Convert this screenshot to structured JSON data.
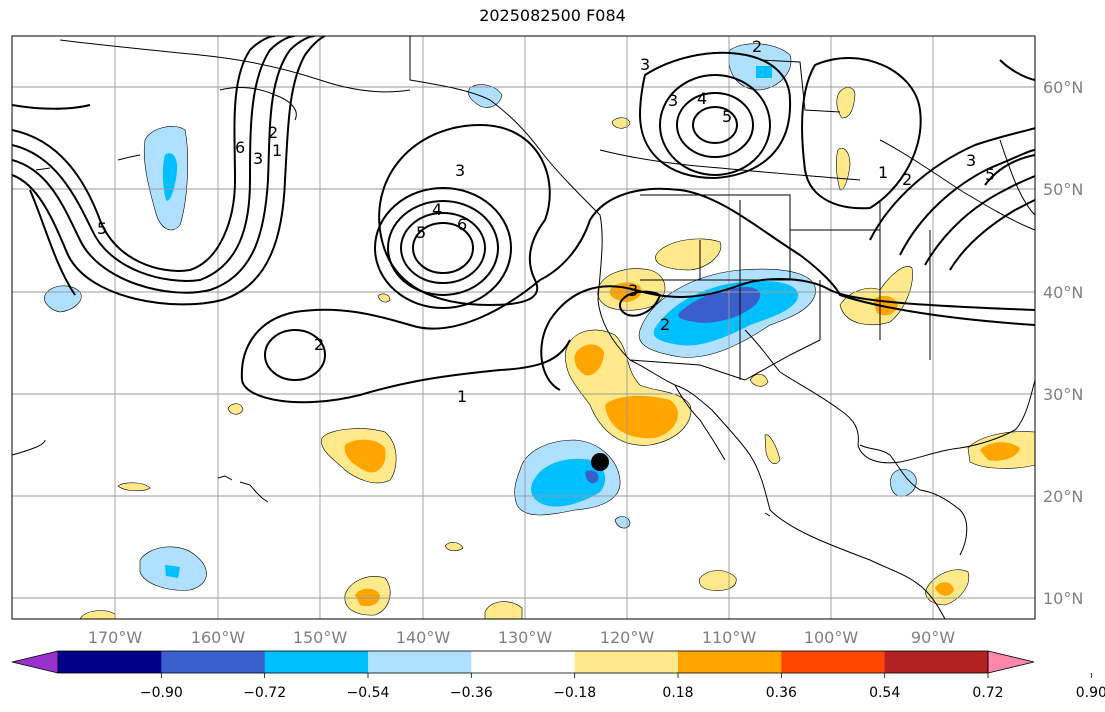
{
  "title": "2025082500 F084",
  "map": {
    "lon_labels": [
      "170°W",
      "160°W",
      "150°W",
      "140°W",
      "130°W",
      "120°W",
      "110°W",
      "100°W",
      "90°W"
    ],
    "lat_labels": [
      "60°N",
      "50°N",
      "40°N",
      "30°N",
      "20°N",
      "10°N"
    ],
    "contour_labels": [
      "1",
      "2",
      "3",
      "4",
      "5",
      "6"
    ],
    "marker": "black-dot"
  },
  "colorbar": {
    "tick_labels": [
      "−0.90",
      "−0.72",
      "−0.54",
      "−0.36",
      "−0.18",
      "0.18",
      "0.36",
      "0.54",
      "0.72",
      "0.90"
    ],
    "colors": [
      "#9932cc",
      "#00008b",
      "#3a5fcd",
      "#00bfff",
      "#b0e0ff",
      "#ffffff",
      "#ffe98a",
      "#ffa500",
      "#ff4500",
      "#b22222",
      "#ff88aa"
    ]
  }
}
